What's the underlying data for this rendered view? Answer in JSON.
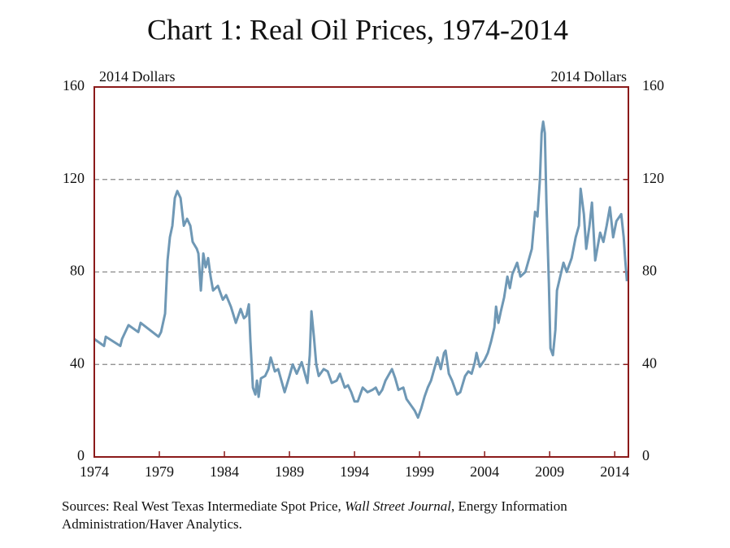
{
  "chart_data": {
    "type": "line",
    "title": "Chart 1: Real Oil Prices, 1974-2014",
    "ylabel": "2014 Dollars",
    "y2label": "2014 Dollars",
    "source": [
      "Sources: Real West Texas Intermediate Spot Price, ",
      "Wall Street Journal",
      ", Energy Information Administration/Haver Analytics."
    ],
    "xlim": [
      1974,
      2015.05
    ],
    "xticks": [
      1974,
      1979,
      1984,
      1989,
      1994,
      1999,
      2004,
      2009,
      2014
    ],
    "ylim": [
      0,
      160
    ],
    "yticks": [
      0,
      40,
      80,
      120,
      160
    ],
    "y2lim": [
      0,
      160
    ],
    "y2ticks": [
      0,
      40,
      80,
      120,
      160
    ],
    "grid": true,
    "frame_color": "#8b1a1a",
    "series": [
      {
        "color": "#6f98b5",
        "x": [
          1974.0,
          1974.75,
          1974.88,
          1976.0,
          1976.13,
          1976.63,
          1977.38,
          1977.56,
          1978.94,
          1979.13,
          1979.44,
          1979.63,
          1979.81,
          1980.0,
          1980.19,
          1980.38,
          1980.63,
          1980.88,
          1981.13,
          1981.38,
          1981.56,
          1981.88,
          1982.0,
          1982.19,
          1982.38,
          1982.56,
          1982.75,
          1982.94,
          1983.13,
          1983.5,
          1983.88,
          1984.13,
          1984.5,
          1984.88,
          1985.25,
          1985.5,
          1985.69,
          1985.88,
          1986.0,
          1986.19,
          1986.38,
          1986.5,
          1986.63,
          1986.81,
          1987.13,
          1987.38,
          1987.56,
          1987.88,
          1988.13,
          1988.38,
          1988.63,
          1989.0,
          1989.25,
          1989.56,
          1989.94,
          1990.38,
          1990.56,
          1990.69,
          1990.88,
          1991.06,
          1991.25,
          1991.63,
          1991.94,
          1992.25,
          1992.63,
          1992.88,
          1993.25,
          1993.5,
          1993.75,
          1994.0,
          1994.25,
          1994.63,
          1995.0,
          1995.38,
          1995.63,
          1995.88,
          1996.13,
          1996.38,
          1996.88,
          1997.13,
          1997.38,
          1997.75,
          1998.0,
          1998.38,
          1998.63,
          1998.88,
          1999.13,
          1999.38,
          1999.63,
          1999.88,
          2000.13,
          2000.38,
          2000.63,
          2000.88,
          2001.0,
          2001.25,
          2001.5,
          2001.88,
          2002.13,
          2002.5,
          2002.75,
          2003.0,
          2003.25,
          2003.38,
          2003.63,
          2004.0,
          2004.25,
          2004.5,
          2004.75,
          2004.88,
          2005.06,
          2005.25,
          2005.5,
          2005.75,
          2005.94,
          2006.13,
          2006.5,
          2006.75,
          2007.13,
          2007.63,
          2007.88,
          2008.06,
          2008.25,
          2008.38,
          2008.5,
          2008.63,
          2008.75,
          2008.94,
          2009.06,
          2009.25,
          2009.44,
          2009.56,
          2009.81,
          2010.06,
          2010.31,
          2010.69,
          2011.0,
          2011.25,
          2011.38,
          2011.63,
          2011.81,
          2012.06,
          2012.25,
          2012.5,
          2012.88,
          2013.13,
          2013.38,
          2013.63,
          2013.88,
          2014.13,
          2014.5,
          2014.69,
          2014.81,
          2014.94
        ],
        "values": [
          51,
          48,
          52,
          48,
          51,
          57,
          54,
          58,
          52,
          54,
          62,
          85,
          95,
          100,
          112,
          115,
          112,
          100,
          103,
          100,
          93,
          90,
          88,
          72,
          88,
          82,
          86,
          78,
          72,
          74,
          68,
          70,
          65,
          58,
          64,
          60,
          61,
          66,
          50,
          30,
          27,
          33,
          26,
          34,
          35,
          38,
          43,
          37,
          38,
          33,
          28,
          35,
          40,
          36,
          41,
          32,
          44,
          63,
          52,
          40,
          35,
          38,
          37,
          32,
          33,
          36,
          30,
          31,
          28,
          24,
          24,
          30,
          28,
          29,
          30,
          27,
          29,
          33,
          38,
          34,
          29,
          30,
          25,
          22,
          20,
          17,
          21,
          26,
          30,
          33,
          38,
          43,
          38,
          45,
          46,
          36,
          33,
          27,
          28,
          35,
          37,
          36,
          41,
          45,
          39,
          42,
          45,
          50,
          56,
          65,
          58,
          63,
          69,
          78,
          73,
          79,
          84,
          78,
          80,
          90,
          106,
          104,
          120,
          140,
          145,
          140,
          110,
          75,
          47,
          44,
          55,
          72,
          78,
          84,
          80,
          86,
          95,
          100,
          116,
          105,
          90,
          100,
          110,
          85,
          97,
          93,
          100,
          108,
          95,
          102,
          105,
          95,
          85,
          76
        ]
      }
    ]
  }
}
